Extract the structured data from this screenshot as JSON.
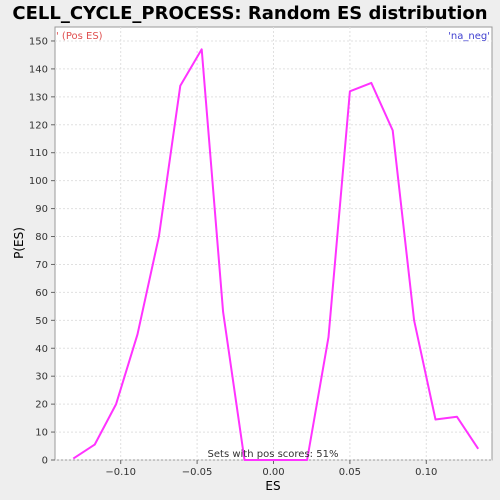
{
  "chart_data": {
    "type": "line",
    "title": "CELL_CYCLE_PROCESS: Random ES distribution",
    "xlabel": "ES",
    "ylabel": "P(ES)",
    "xlim": [
      -0.143,
      0.143
    ],
    "ylim": [
      0,
      155
    ],
    "x_ticks": [
      -0.1,
      -0.05,
      0.0,
      0.05,
      0.1
    ],
    "x_tick_labels": [
      "−0.10",
      "−0.05",
      "0.00",
      "0.05",
      "0.10"
    ],
    "y_ticks": [
      0,
      10,
      20,
      30,
      40,
      50,
      60,
      70,
      80,
      90,
      100,
      110,
      120,
      130,
      140,
      150
    ],
    "grid": true,
    "annotations": {
      "top_left": "' (Pos ES)",
      "top_right": "'na_neg'",
      "bottom": "Sets with pos scores: 51%"
    },
    "series": [
      {
        "color": "#ff33ff",
        "x": [
          -0.131,
          -0.117,
          -0.103,
          -0.089,
          -0.075,
          -0.061,
          -0.047,
          -0.033,
          -0.019,
          -0.005,
          0.008,
          0.022,
          0.036,
          0.05,
          0.064,
          0.078,
          0.092,
          0.106,
          0.12,
          0.134
        ],
        "y": [
          0.5,
          5.5,
          20,
          45,
          80,
          134,
          147,
          53,
          0,
          0,
          0,
          0,
          44,
          132,
          135,
          118,
          50,
          14.5,
          15.5,
          4
        ]
      }
    ]
  },
  "colors": {
    "plot_bg": "#ffffff",
    "page_bg": "#eeeeee",
    "line": "#ff33ff",
    "grid": "#e0e0e0"
  }
}
